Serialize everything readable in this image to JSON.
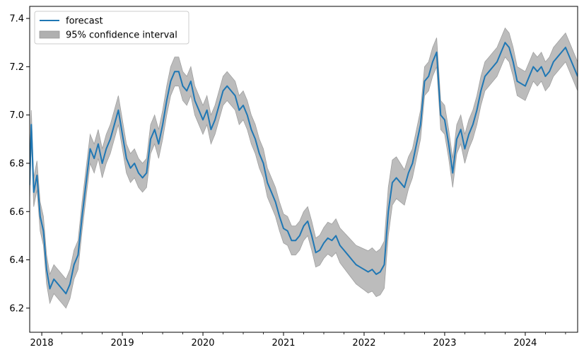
{
  "chart_data": {
    "type": "line",
    "title": "",
    "xlabel": "",
    "ylabel": "",
    "xlim": [
      2017.85,
      2024.65
    ],
    "ylim": [
      6.1,
      7.45
    ],
    "x_ticks": [
      {
        "value": 2018,
        "label": "2018"
      },
      {
        "value": 2019,
        "label": "2019"
      },
      {
        "value": 2020,
        "label": "2020"
      },
      {
        "value": 2021,
        "label": "2021"
      },
      {
        "value": 2022,
        "label": "2022"
      },
      {
        "value": 2023,
        "label": "2023"
      },
      {
        "value": 2024,
        "label": "2024"
      }
    ],
    "y_ticks": [
      {
        "value": 6.2,
        "label": "6.2"
      },
      {
        "value": 6.4,
        "label": "6.4"
      },
      {
        "value": 6.6,
        "label": "6.6"
      },
      {
        "value": 6.8,
        "label": "6.8"
      },
      {
        "value": 7.0,
        "label": "7.0"
      },
      {
        "value": 7.2,
        "label": "7.2"
      },
      {
        "value": 7.4,
        "label": "7.4"
      }
    ],
    "grid": false,
    "legend": {
      "placement": "top-left",
      "entries": [
        {
          "name": "forecast",
          "kind": "line",
          "color": "#1f77b4"
        },
        {
          "name": "95% confidence interval",
          "kind": "patch",
          "color": "#b0b0b0"
        }
      ]
    },
    "series": [
      {
        "name": "forecast",
        "color": "#1f77b4",
        "band_color": "#b0b0b0",
        "band_halfwidth": [
          [
            2017.85,
            0.06
          ],
          [
            2021.4,
            0.06
          ],
          [
            2021.9,
            0.08
          ],
          [
            2022.3,
            0.1
          ],
          [
            2022.6,
            0.06
          ],
          [
            2024.65,
            0.06
          ]
        ],
        "x": [
          2017.85,
          2017.87,
          2017.9,
          2017.94,
          2017.98,
          2018.02,
          2018.06,
          2018.1,
          2018.15,
          2018.2,
          2018.25,
          2018.3,
          2018.35,
          2018.4,
          2018.45,
          2018.5,
          2018.55,
          2018.6,
          2018.65,
          2018.7,
          2018.75,
          2018.8,
          2018.85,
          2018.9,
          2018.95,
          2019.0,
          2019.05,
          2019.1,
          2019.15,
          2019.2,
          2019.25,
          2019.3,
          2019.35,
          2019.4,
          2019.45,
          2019.5,
          2019.55,
          2019.6,
          2019.65,
          2019.7,
          2019.75,
          2019.8,
          2019.85,
          2019.9,
          2019.95,
          2020.0,
          2020.05,
          2020.1,
          2020.15,
          2020.2,
          2020.25,
          2020.3,
          2020.35,
          2020.4,
          2020.45,
          2020.5,
          2020.55,
          2020.6,
          2020.65,
          2020.7,
          2020.75,
          2020.8,
          2020.85,
          2020.9,
          2020.95,
          2021.0,
          2021.05,
          2021.1,
          2021.15,
          2021.2,
          2021.25,
          2021.3,
          2021.35,
          2021.4,
          2021.45,
          2021.5,
          2021.55,
          2021.6,
          2021.65,
          2021.7,
          2021.75,
          2021.8,
          2021.85,
          2021.9,
          2021.95,
          2022.0,
          2022.05,
          2022.1,
          2022.15,
          2022.2,
          2022.25,
          2022.3,
          2022.35,
          2022.4,
          2022.45,
          2022.5,
          2022.55,
          2022.6,
          2022.65,
          2022.7,
          2022.75,
          2022.8,
          2022.85,
          2022.9,
          2022.95,
          2023.0,
          2023.05,
          2023.1,
          2023.15,
          2023.2,
          2023.25,
          2023.3,
          2023.35,
          2023.4,
          2023.45,
          2023.5,
          2023.55,
          2023.6,
          2023.65,
          2023.7,
          2023.75,
          2023.8,
          2023.85,
          2023.9,
          2023.95,
          2024.0,
          2024.05,
          2024.1,
          2024.15,
          2024.2,
          2024.25,
          2024.3,
          2024.35,
          2024.4,
          2024.45,
          2024.5,
          2024.55,
          2024.6,
          2024.65
        ],
        "values": [
          6.71,
          6.96,
          6.68,
          6.75,
          6.58,
          6.52,
          6.36,
          6.28,
          6.32,
          6.3,
          6.28,
          6.26,
          6.3,
          6.38,
          6.42,
          6.58,
          6.72,
          6.86,
          6.82,
          6.88,
          6.8,
          6.86,
          6.9,
          6.96,
          7.02,
          6.92,
          6.82,
          6.78,
          6.8,
          6.76,
          6.74,
          6.76,
          6.9,
          6.94,
          6.88,
          6.96,
          7.06,
          7.14,
          7.18,
          7.18,
          7.12,
          7.1,
          7.14,
          7.06,
          7.02,
          6.98,
          7.02,
          6.94,
          6.98,
          7.04,
          7.1,
          7.12,
          7.1,
          7.08,
          7.02,
          7.04,
          7.0,
          6.94,
          6.9,
          6.84,
          6.8,
          6.72,
          6.68,
          6.64,
          6.58,
          6.53,
          6.52,
          6.48,
          6.48,
          6.5,
          6.54,
          6.56,
          6.5,
          6.43,
          6.44,
          6.47,
          6.49,
          6.48,
          6.5,
          6.46,
          6.44,
          6.42,
          6.4,
          6.38,
          6.37,
          6.36,
          6.35,
          6.36,
          6.34,
          6.35,
          6.38,
          6.6,
          6.72,
          6.74,
          6.72,
          6.7,
          6.76,
          6.8,
          6.88,
          6.96,
          7.14,
          7.16,
          7.22,
          7.26,
          7.0,
          6.98,
          6.88,
          6.76,
          6.9,
          6.94,
          6.86,
          6.92,
          6.96,
          7.02,
          7.1,
          7.16,
          7.18,
          7.2,
          7.22,
          7.26,
          7.3,
          7.28,
          7.22,
          7.14,
          7.13,
          7.12,
          7.16,
          7.2,
          7.18,
          7.2,
          7.16,
          7.18,
          7.22,
          7.24,
          7.26,
          7.28,
          7.24,
          7.2,
          7.16
        ]
      }
    ]
  }
}
